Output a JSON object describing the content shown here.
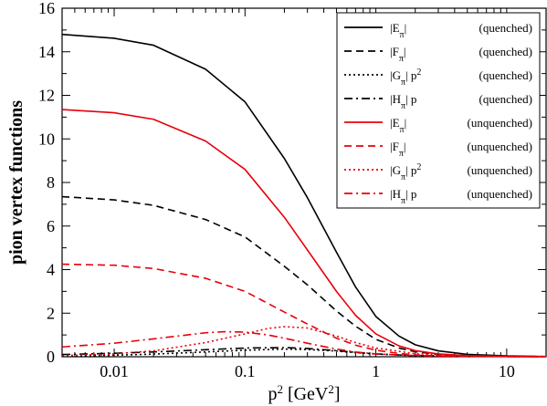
{
  "chart_data": {
    "type": "line",
    "xscale": "log",
    "xlim": [
      0.004,
      20
    ],
    "ylim": [
      0,
      16
    ],
    "grid": false,
    "legend_position": "top-right",
    "xlabel": {
      "base": "p",
      "sup1": "2",
      "mid": " [GeV",
      "sup2": "2",
      "end": "]"
    },
    "ylabel": "pion vertex functions",
    "xticks": [
      0.01,
      0.1,
      1,
      10
    ],
    "xtick_labels": [
      "0.01",
      "0.1",
      "1",
      "10"
    ],
    "yticks": [
      0,
      2,
      4,
      6,
      8,
      10,
      12,
      14,
      16
    ],
    "ytick_labels": [
      "0",
      "2",
      "4",
      "6",
      "8",
      "10",
      "12",
      "14",
      "16"
    ],
    "colors": {
      "quenched": "#000000",
      "unquenched": "#e8000b"
    },
    "series": [
      {
        "name": "|Eπ| (quenched)",
        "legend": {
          "pre": "|E",
          "sub": "π",
          "post": "|",
          "sup": "",
          "tail": "",
          "tag": "(quenched)"
        },
        "color": "#000000",
        "dash": "solid",
        "x": [
          0.004,
          0.01,
          0.02,
          0.05,
          0.1,
          0.2,
          0.3,
          0.5,
          0.7,
          1,
          1.5,
          2,
          3,
          5,
          10,
          20
        ],
        "y": [
          14.8,
          14.62,
          14.3,
          13.2,
          11.7,
          9.1,
          7.3,
          4.8,
          3.2,
          1.85,
          0.95,
          0.55,
          0.27,
          0.11,
          0.04,
          0.01
        ]
      },
      {
        "name": "|Fπ| (quenched)",
        "legend": {
          "pre": "|F",
          "sub": "π",
          "post": "|",
          "sup": "",
          "tail": "",
          "tag": "(quenched)"
        },
        "color": "#000000",
        "dash": "dashed",
        "x": [
          0.004,
          0.01,
          0.02,
          0.05,
          0.1,
          0.2,
          0.3,
          0.5,
          0.7,
          1,
          1.5,
          2,
          3,
          5,
          10,
          20
        ],
        "y": [
          7.35,
          7.2,
          6.95,
          6.3,
          5.5,
          4.15,
          3.3,
          2.1,
          1.4,
          0.8,
          0.4,
          0.23,
          0.11,
          0.05,
          0.02,
          0.01
        ]
      },
      {
        "name": "|Gπ| p² (quenched)",
        "legend": {
          "pre": "|G",
          "sub": "π",
          "post": "| p",
          "sup": "2",
          "tail": "",
          "tag": "(quenched)"
        },
        "color": "#000000",
        "dash": "dotted",
        "x": [
          0.004,
          0.01,
          0.02,
          0.05,
          0.1,
          0.2,
          0.3,
          0.5,
          0.7,
          1,
          2,
          5,
          10,
          20
        ],
        "y": [
          0.03,
          0.07,
          0.12,
          0.22,
          0.3,
          0.35,
          0.33,
          0.26,
          0.19,
          0.12,
          0.05,
          0.02,
          0.01,
          0.0
        ]
      },
      {
        "name": "|Hπ| p (quenched)",
        "legend": {
          "pre": "|H",
          "sub": "π",
          "post": "| p",
          "sup": "",
          "tail": "",
          "tag": "(quenched)"
        },
        "color": "#000000",
        "dash": "dashdot",
        "x": [
          0.004,
          0.01,
          0.02,
          0.05,
          0.1,
          0.2,
          0.3,
          0.5,
          0.7,
          1,
          2,
          5,
          10,
          20
        ],
        "y": [
          0.1,
          0.16,
          0.22,
          0.32,
          0.4,
          0.42,
          0.38,
          0.28,
          0.2,
          0.13,
          0.05,
          0.02,
          0.01,
          0.0
        ]
      },
      {
        "name": "|Eπ| (unquenched)",
        "legend": {
          "pre": "|E",
          "sub": "π",
          "post": "|",
          "sup": "",
          "tail": "",
          "tag": "(unquenched)"
        },
        "color": "#e8000b",
        "dash": "solid",
        "x": [
          0.004,
          0.01,
          0.02,
          0.05,
          0.1,
          0.2,
          0.3,
          0.5,
          0.7,
          1,
          1.5,
          2,
          3,
          5,
          10,
          20
        ],
        "y": [
          11.35,
          11.2,
          10.9,
          9.9,
          8.6,
          6.4,
          4.9,
          3.0,
          1.9,
          1.05,
          0.5,
          0.28,
          0.13,
          0.05,
          0.02,
          0.01
        ]
      },
      {
        "name": "|Fπ| (unquenched)",
        "legend": {
          "pre": "|F",
          "sub": "π",
          "post": "|",
          "sup": "",
          "tail": "",
          "tag": "(unquenched)"
        },
        "color": "#e8000b",
        "dash": "dashed",
        "x": [
          0.004,
          0.01,
          0.02,
          0.05,
          0.1,
          0.2,
          0.3,
          0.5,
          0.7,
          1,
          1.5,
          2,
          3,
          5,
          10,
          20
        ],
        "y": [
          4.25,
          4.2,
          4.05,
          3.6,
          3.0,
          2.05,
          1.5,
          0.85,
          0.53,
          0.3,
          0.15,
          0.08,
          0.04,
          0.02,
          0.01,
          0.0
        ]
      },
      {
        "name": "|Gπ| p² (unquenched)",
        "legend": {
          "pre": "|G",
          "sub": "π",
          "post": "| p",
          "sup": "2",
          "tail": "",
          "tag": "(unquenched)"
        },
        "color": "#e8000b",
        "dash": "dotted",
        "x": [
          0.004,
          0.01,
          0.02,
          0.05,
          0.1,
          0.15,
          0.2,
          0.3,
          0.5,
          0.7,
          1,
          2,
          5,
          10,
          20
        ],
        "y": [
          0.05,
          0.13,
          0.27,
          0.65,
          1.05,
          1.3,
          1.38,
          1.32,
          0.95,
          0.65,
          0.4,
          0.14,
          0.04,
          0.01,
          0.0
        ]
      },
      {
        "name": "|Hπ| p (unquenched)",
        "legend": {
          "pre": "|H",
          "sub": "π",
          "post": "| p",
          "sup": "",
          "tail": "",
          "tag": "(unquenched)"
        },
        "color": "#e8000b",
        "dash": "dashdot",
        "x": [
          0.004,
          0.01,
          0.02,
          0.05,
          0.07,
          0.1,
          0.15,
          0.2,
          0.3,
          0.5,
          0.7,
          1,
          2,
          5,
          10,
          20
        ],
        "y": [
          0.45,
          0.62,
          0.82,
          1.1,
          1.15,
          1.13,
          1.0,
          0.85,
          0.62,
          0.35,
          0.22,
          0.13,
          0.05,
          0.02,
          0.01,
          0.0
        ]
      }
    ]
  }
}
